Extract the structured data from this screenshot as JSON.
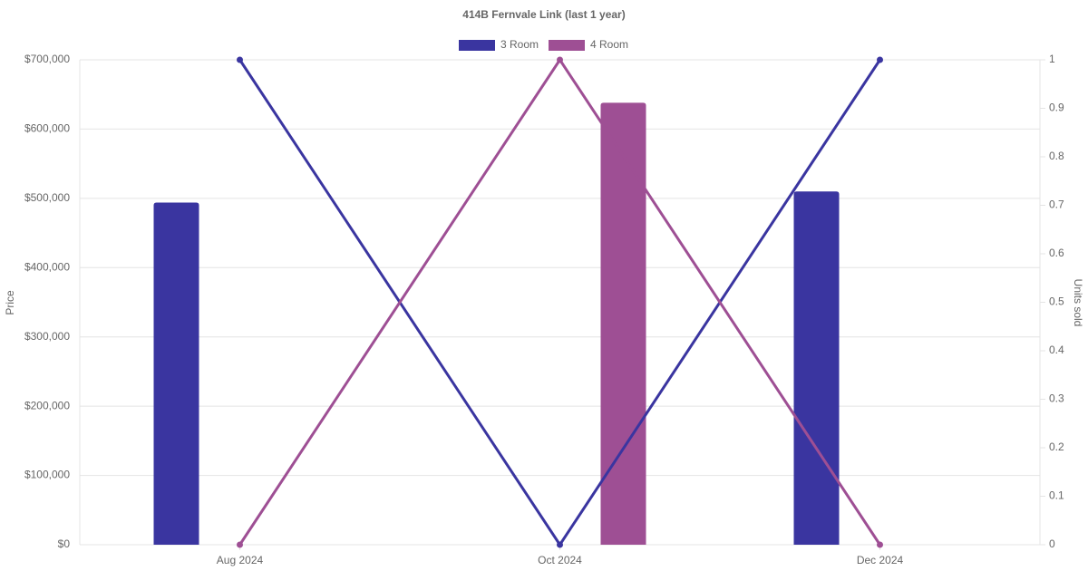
{
  "chart_data": {
    "type": "bar-line",
    "title": "414B Fernvale Link (last 1 year)",
    "y_label": "Price",
    "y2_label": "Units sold",
    "categories": [
      "Aug 2024",
      "Oct 2024",
      "Dec 2024"
    ],
    "series": [
      {
        "name": "3 Room",
        "color": "#3a35a0",
        "values": [
          494000,
          null,
          510000
        ],
        "y2_values": [
          1,
          0,
          1
        ]
      },
      {
        "name": "4 Room",
        "color": "#9e4f94",
        "values": [
          null,
          638000,
          null
        ],
        "y2_values": [
          0,
          1,
          0
        ]
      }
    ],
    "ylim": [
      0,
      700000
    ],
    "yticks": [
      {
        "value": 0,
        "label": "$0"
      },
      {
        "value": 100000,
        "label": "$100,000"
      },
      {
        "value": 200000,
        "label": "$200,000"
      },
      {
        "value": 300000,
        "label": "$300,000"
      },
      {
        "value": 400000,
        "label": "$400,000"
      },
      {
        "value": 500000,
        "label": "$500,000"
      },
      {
        "value": 600000,
        "label": "$600,000"
      },
      {
        "value": 700000,
        "label": "$700,000"
      }
    ],
    "y2lim": [
      0,
      1
    ],
    "y2ticks": [
      0,
      0.1,
      0.2,
      0.3,
      0.4,
      0.5,
      0.6,
      0.7,
      0.8,
      0.9,
      1
    ],
    "grid": true,
    "legend": "top"
  }
}
